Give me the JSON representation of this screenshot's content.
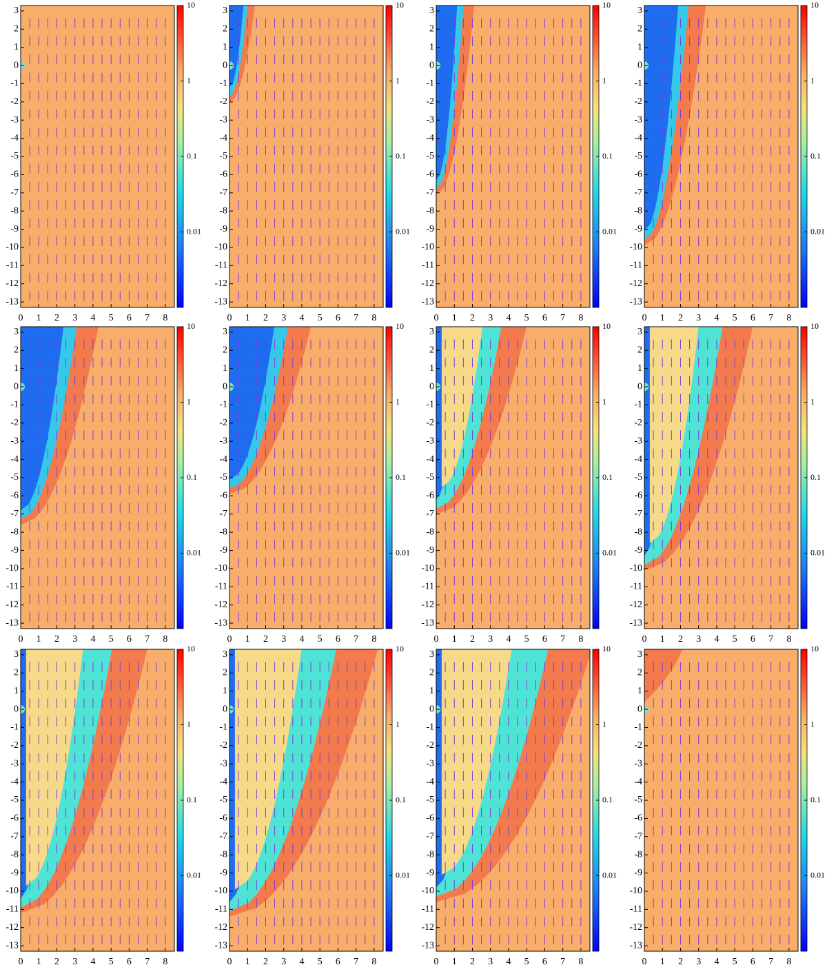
{
  "chart_data": [
    {
      "type": "heatmap",
      "xlim": [
        0,
        8.5
      ],
      "ylim": [
        -13.3,
        3.3
      ],
      "xticks": [
        0,
        1,
        2,
        3,
        4,
        5,
        6,
        7,
        8
      ],
      "yticks": [
        3,
        2,
        1,
        0,
        -1,
        -2,
        -3,
        -4,
        -5,
        -6,
        -7,
        -8,
        -9,
        -10,
        -11,
        -12,
        -13
      ],
      "colorbar": {
        "scale": "log",
        "lim": [
          0.001,
          10
        ],
        "ticks": [
          10,
          1,
          0.1,
          0.01
        ]
      }
    },
    {
      "type": "heatmap",
      "xlim": [
        0,
        8.5
      ],
      "ylim": [
        -13.3,
        3.3
      ],
      "xticks": [
        0,
        1,
        2,
        3,
        4,
        5,
        6,
        7,
        8
      ],
      "yticks": [
        3,
        2,
        1,
        0,
        -1,
        -2,
        -3,
        -4,
        -5,
        -6,
        -7,
        -8,
        -9,
        -10,
        -11,
        -12,
        -13
      ],
      "colorbar": {
        "scale": "log",
        "lim": [
          0.001,
          10
        ],
        "ticks": [
          10,
          1,
          0.1,
          0.01
        ]
      }
    },
    {
      "type": "heatmap",
      "xlim": [
        0,
        8.5
      ],
      "ylim": [
        -13.3,
        3.3
      ],
      "xticks": [
        0,
        1,
        2,
        3,
        4,
        5,
        6,
        7,
        8
      ],
      "yticks": [
        3,
        2,
        1,
        0,
        -1,
        -2,
        -3,
        -4,
        -5,
        -6,
        -7,
        -8,
        -9,
        -10,
        -11,
        -12,
        -13
      ],
      "colorbar": {
        "scale": "log",
        "lim": [
          0.001,
          10
        ],
        "ticks": [
          10,
          1,
          0.1,
          0.01
        ]
      }
    },
    {
      "type": "heatmap",
      "xlim": [
        0,
        8.5
      ],
      "ylim": [
        -13.3,
        3.3
      ],
      "xticks": [
        0,
        1,
        2,
        3,
        4,
        5,
        6,
        7,
        8
      ],
      "yticks": [
        3,
        2,
        1,
        0,
        -1,
        -2,
        -3,
        -4,
        -5,
        -6,
        -7,
        -8,
        -9,
        -10,
        -11,
        -12,
        -13
      ],
      "colorbar": {
        "scale": "log",
        "lim": [
          0.001,
          10
        ],
        "ticks": [
          10,
          1,
          0.1,
          0.01
        ]
      }
    },
    {
      "type": "heatmap",
      "xlim": [
        0,
        8.5
      ],
      "ylim": [
        -13.3,
        3.3
      ],
      "xticks": [
        0,
        1,
        2,
        3,
        4,
        5,
        6,
        7,
        8
      ],
      "yticks": [
        3,
        2,
        1,
        0,
        -1,
        -2,
        -3,
        -4,
        -5,
        -6,
        -7,
        -8,
        -9,
        -10,
        -11,
        -12,
        -13
      ],
      "colorbar": {
        "scale": "log",
        "lim": [
          0.001,
          10
        ],
        "ticks": [
          10,
          1,
          0.1,
          0.01
        ]
      }
    },
    {
      "type": "heatmap",
      "xlim": [
        0,
        8.5
      ],
      "ylim": [
        -13.3,
        3.3
      ],
      "xticks": [
        0,
        1,
        2,
        3,
        4,
        5,
        6,
        7,
        8
      ],
      "yticks": [
        3,
        2,
        1,
        0,
        -1,
        -2,
        -3,
        -4,
        -5,
        -6,
        -7,
        -8,
        -9,
        -10,
        -11,
        -12,
        -13
      ],
      "colorbar": {
        "scale": "log",
        "lim": [
          0.001,
          10
        ],
        "ticks": [
          10,
          1,
          0.1,
          0.01
        ]
      }
    },
    {
      "type": "heatmap",
      "xlim": [
        0,
        8.5
      ],
      "ylim": [
        -13.3,
        3.3
      ],
      "xticks": [
        0,
        1,
        2,
        3,
        4,
        5,
        6,
        7,
        8
      ],
      "yticks": [
        3,
        2,
        1,
        0,
        -1,
        -2,
        -3,
        -4,
        -5,
        -6,
        -7,
        -8,
        -9,
        -10,
        -11,
        -12,
        -13
      ],
      "colorbar": {
        "scale": "log",
        "lim": [
          0.001,
          10
        ],
        "ticks": [
          10,
          1,
          0.1,
          0.01
        ]
      }
    },
    {
      "type": "heatmap",
      "xlim": [
        0,
        8.5
      ],
      "ylim": [
        -13.3,
        3.3
      ],
      "xticks": [
        0,
        1,
        2,
        3,
        4,
        5,
        6,
        7,
        8
      ],
      "yticks": [
        3,
        2,
        1,
        0,
        -1,
        -2,
        -3,
        -4,
        -5,
        -6,
        -7,
        -8,
        -9,
        -10,
        -11,
        -12,
        -13
      ],
      "colorbar": {
        "scale": "log",
        "lim": [
          0.001,
          10
        ],
        "ticks": [
          10,
          1,
          0.1,
          0.01
        ]
      }
    },
    {
      "type": "heatmap",
      "xlim": [
        0,
        8.5
      ],
      "ylim": [
        -13.3,
        3.3
      ],
      "xticks": [
        0,
        1,
        2,
        3,
        4,
        5,
        6,
        7,
        8
      ],
      "yticks": [
        3,
        2,
        1,
        0,
        -1,
        -2,
        -3,
        -4,
        -5,
        -6,
        -7,
        -8,
        -9,
        -10,
        -11,
        -12,
        -13
      ],
      "colorbar": {
        "scale": "log",
        "lim": [
          0.001,
          10
        ],
        "ticks": [
          10,
          1,
          0.1,
          0.01
        ]
      }
    },
    {
      "type": "heatmap",
      "xlim": [
        0,
        8.5
      ],
      "ylim": [
        -13.3,
        3.3
      ],
      "xticks": [
        0,
        1,
        2,
        3,
        4,
        5,
        6,
        7,
        8
      ],
      "yticks": [
        3,
        2,
        1,
        0,
        -1,
        -2,
        -3,
        -4,
        -5,
        -6,
        -7,
        -8,
        -9,
        -10,
        -11,
        -12,
        -13
      ],
      "colorbar": {
        "scale": "log",
        "lim": [
          0.001,
          10
        ],
        "ticks": [
          10,
          1,
          0.1,
          0.01
        ]
      }
    },
    {
      "type": "heatmap",
      "xlim": [
        0,
        8.5
      ],
      "ylim": [
        -13.3,
        3.3
      ],
      "xticks": [
        0,
        1,
        2,
        3,
        4,
        5,
        6,
        7,
        8
      ],
      "yticks": [
        3,
        2,
        1,
        0,
        -1,
        -2,
        -3,
        -4,
        -5,
        -6,
        -7,
        -8,
        -9,
        -10,
        -11,
        -12,
        -13
      ],
      "colorbar": {
        "scale": "log",
        "lim": [
          0.001,
          10
        ],
        "ticks": [
          10,
          1,
          0.1,
          0.01
        ]
      }
    },
    {
      "type": "heatmap",
      "xlim": [
        0,
        8.5
      ],
      "ylim": [
        -13.3,
        3.3
      ],
      "xticks": [
        0,
        1,
        2,
        3,
        4,
        5,
        6,
        7,
        8
      ],
      "yticks": [
        3,
        2,
        1,
        0,
        -1,
        -2,
        -3,
        -4,
        -5,
        -6,
        -7,
        -8,
        -9,
        -10,
        -11,
        -12,
        -13
      ],
      "colorbar": {
        "scale": "log",
        "lim": [
          0.001,
          10
        ],
        "ticks": [
          10,
          1,
          0.1,
          0.01
        ]
      }
    }
  ]
}
